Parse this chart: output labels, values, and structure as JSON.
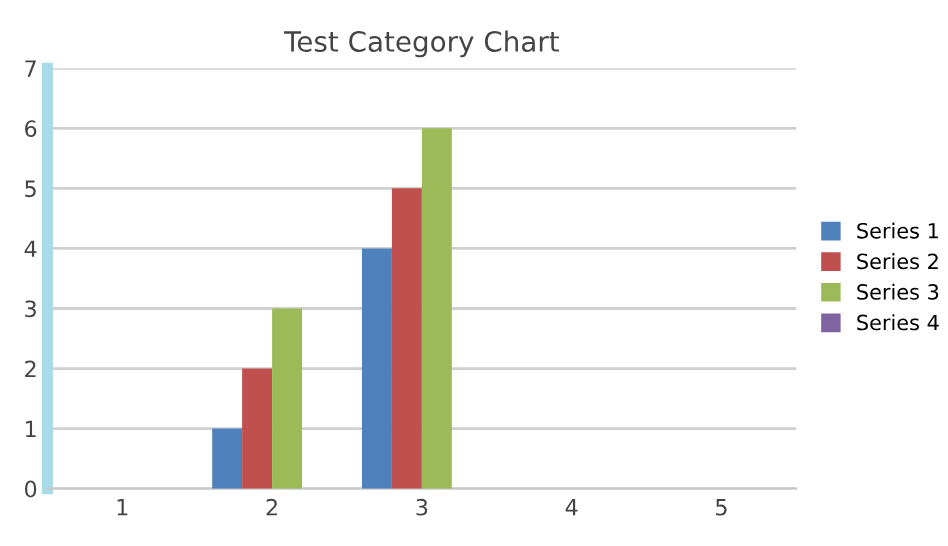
{
  "chart_data": {
    "type": "bar",
    "title": "Test Category Chart",
    "categories": [
      "1",
      "2",
      "3",
      "4",
      "5"
    ],
    "series": [
      {
        "name": "Series 1",
        "color": "#4f81bd",
        "values": [
          null,
          1,
          4,
          null,
          null
        ]
      },
      {
        "name": "Series 2",
        "color": "#c0504d",
        "values": [
          null,
          2,
          5,
          null,
          null
        ]
      },
      {
        "name": "Series 3",
        "color": "#9bbb59",
        "values": [
          null,
          3,
          6,
          null,
          null
        ]
      },
      {
        "name": "Series 4",
        "color": "#8064a2",
        "values": [
          null,
          null,
          null,
          null,
          null
        ]
      }
    ],
    "ylim": [
      0,
      7
    ],
    "yticks": [
      0,
      1,
      2,
      3,
      4,
      5,
      6,
      7
    ],
    "grid": "y",
    "legend": "right"
  }
}
